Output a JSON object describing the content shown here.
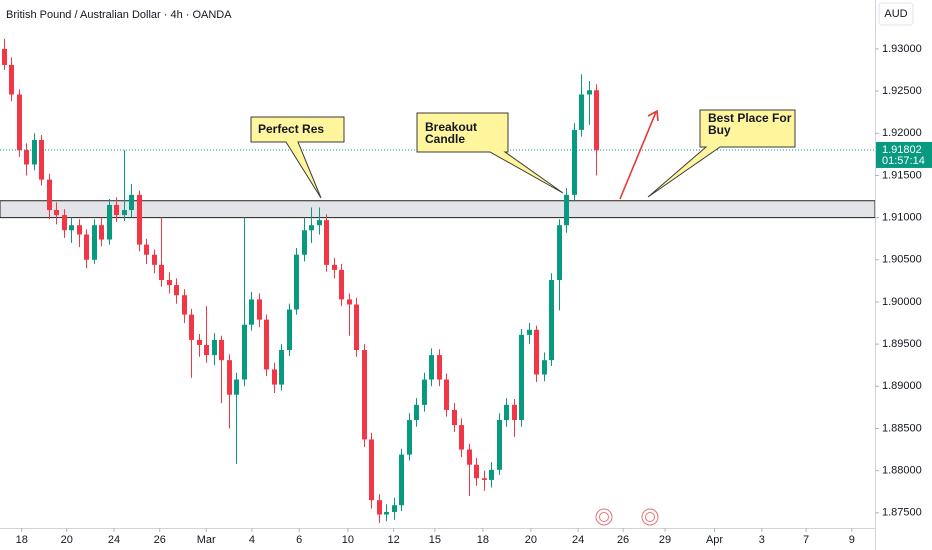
{
  "chart_data": {
    "type": "candlestick",
    "title": "British Pound / Australian Dollar · 4h · OANDA",
    "currency": "AUD",
    "last_price": 1.91802,
    "countdown": "01:57:14",
    "up_color": "#089981",
    "down_color": "#f23645",
    "grid": false,
    "zone": [
      1.91,
      1.912
    ],
    "annotations": [
      {
        "lines": [
          "Perfect Res"
        ]
      },
      {
        "lines": [
          "Breakout",
          "Candle"
        ]
      },
      {
        "lines": [
          "Best Place For",
          "Buy"
        ]
      }
    ],
    "xlim": [
      0,
      116.7
    ],
    "xticks": [
      {
        "value": 2.9,
        "label": "18"
      },
      {
        "value": 8.9,
        "label": "20"
      },
      {
        "value": 15.2,
        "label": "24"
      },
      {
        "value": 21.3,
        "label": "26"
      },
      {
        "value": 27.5,
        "label": "Mar"
      },
      {
        "value": 33.6,
        "label": "4"
      },
      {
        "value": 39.9,
        "label": "6"
      },
      {
        "value": 46.4,
        "label": "10"
      },
      {
        "value": 52.5,
        "label": "12"
      },
      {
        "value": 58.0,
        "label": "15"
      },
      {
        "value": 64.4,
        "label": "18"
      },
      {
        "value": 70.8,
        "label": "20"
      },
      {
        "value": 77.1,
        "label": "24"
      },
      {
        "value": 83.1,
        "label": "26"
      },
      {
        "value": 88.7,
        "label": "29"
      },
      {
        "value": 95.3,
        "label": "Apr"
      },
      {
        "value": 101.6,
        "label": "3"
      },
      {
        "value": 107.5,
        "label": "7"
      },
      {
        "value": 113.6,
        "label": "9"
      }
    ],
    "ylim": [
      1.8732,
      1.9358
    ],
    "yticks": [
      {
        "value": 1.875,
        "label": "1.87500"
      },
      {
        "value": 1.88,
        "label": "1.88000"
      },
      {
        "value": 1.885,
        "label": "1.88500"
      },
      {
        "value": 1.89,
        "label": "1.89000"
      },
      {
        "value": 1.895,
        "label": "1.89500"
      },
      {
        "value": 1.9,
        "label": "1.90000"
      },
      {
        "value": 1.905,
        "label": "1.90500"
      },
      {
        "value": 1.91,
        "label": "1.91000"
      },
      {
        "value": 1.915,
        "label": "1.91500"
      },
      {
        "value": 1.92,
        "label": "1.92000"
      },
      {
        "value": 1.925,
        "label": "1.92500"
      },
      {
        "value": 1.93,
        "label": "1.93000"
      }
    ],
    "open": [
      1.93,
      1.9281,
      1.9246,
      1.918,
      1.9163,
      1.9192,
      1.9145,
      1.9109,
      1.9103,
      1.9085,
      1.9091,
      1.908,
      1.905,
      1.9091,
      1.9074,
      1.9115,
      1.9103,
      1.9109,
      1.9127,
      1.9068,
      1.9056,
      1.9044,
      1.9026,
      1.902,
      1.9008,
      1.8985,
      1.8955,
      1.8949,
      1.8937,
      1.8955,
      1.8931,
      1.889,
      1.8908,
      1.8973,
      1.9003,
      1.8979,
      1.892,
      1.8902,
      1.8943,
      1.8991,
      1.9056,
      1.9085,
      1.9091,
      1.9097,
      1.9044,
      1.9038,
      1.9003,
      1.8997,
      1.8943,
      1.8837,
      1.8765,
      1.8748,
      1.8751,
      1.8759,
      1.8819,
      1.886,
      1.8878,
      1.8908,
      1.8937,
      1.8908,
      1.8872,
      1.8854,
      1.8825,
      1.8807,
      1.8791,
      1.8789,
      1.8801,
      1.886,
      1.8878,
      1.886,
      1.8961,
      1.8967,
      1.8914,
      1.8931,
      1.9026,
      1.9091,
      1.9127,
      1.9204,
      1.9246,
      1.9251
    ],
    "high": [
      1.9312,
      1.929,
      1.9252,
      1.9188,
      1.92,
      1.9198,
      1.9152,
      1.9118,
      1.911,
      1.91,
      1.9098,
      1.9086,
      1.9098,
      1.91,
      1.9122,
      1.9124,
      1.918,
      1.914,
      1.9132,
      1.9075,
      1.9062,
      1.91,
      1.9035,
      1.9028,
      1.9015,
      1.8992,
      1.8962,
      1.8995,
      1.8963,
      1.896,
      1.8938,
      1.8916,
      1.91,
      1.9012,
      1.901,
      1.8985,
      1.8928,
      1.895,
      1.8998,
      1.9064,
      1.91,
      1.9112,
      1.9112,
      1.9104,
      1.9052,
      1.9045,
      1.901,
      1.9005,
      1.895,
      1.8845,
      1.8772,
      1.876,
      1.8768,
      1.8826,
      1.8868,
      1.8886,
      1.8916,
      1.8945,
      1.8944,
      1.8915,
      1.888,
      1.8862,
      1.8832,
      1.8815,
      1.88,
      1.881,
      1.8868,
      1.8886,
      1.8885,
      1.8968,
      1.8975,
      1.8972,
      1.894,
      1.9034,
      1.9098,
      1.9135,
      1.9212,
      1.927,
      1.9262,
      1.9258
    ],
    "low": [
      1.9275,
      1.9238,
      1.9172,
      1.915,
      1.9156,
      1.9138,
      1.9098,
      1.9092,
      1.9076,
      1.907,
      1.9065,
      1.904,
      1.9045,
      1.9066,
      1.9068,
      1.9095,
      1.9096,
      1.91,
      1.906,
      1.9045,
      1.9034,
      1.9018,
      1.901,
      1.8998,
      1.8975,
      1.891,
      1.8935,
      1.8928,
      1.8925,
      1.888,
      1.885,
      1.8808,
      1.89,
      1.8966,
      1.897,
      1.8912,
      1.8892,
      1.8895,
      1.8936,
      1.8985,
      1.9048,
      1.907,
      1.908,
      1.9036,
      1.9028,
      1.8995,
      1.896,
      1.8935,
      1.8828,
      1.8755,
      1.8738,
      1.874,
      1.8742,
      1.8752,
      1.8812,
      1.8852,
      1.887,
      1.89,
      1.89,
      1.8864,
      1.8846,
      1.8816,
      1.877,
      1.8782,
      1.8776,
      1.878,
      1.8795,
      1.8852,
      1.884,
      1.8852,
      1.895,
      1.8905,
      1.8906,
      1.8924,
      1.899,
      1.9082,
      1.912,
      1.9196,
      1.921,
      1.915
    ],
    "close": [
      1.9281,
      1.9246,
      1.918,
      1.9163,
      1.9192,
      1.9145,
      1.9109,
      1.9103,
      1.9085,
      1.9091,
      1.908,
      1.905,
      1.9091,
      1.9074,
      1.9115,
      1.9103,
      1.9109,
      1.9127,
      1.9068,
      1.9056,
      1.9044,
      1.9026,
      1.902,
      1.9008,
      1.8985,
      1.8955,
      1.8949,
      1.8937,
      1.8955,
      1.8931,
      1.889,
      1.8908,
      1.8973,
      1.9003,
      1.8979,
      1.892,
      1.8902,
      1.8943,
      1.8991,
      1.9056,
      1.9085,
      1.9091,
      1.9097,
      1.9044,
      1.9038,
      1.9003,
      1.8997,
      1.8943,
      1.8837,
      1.8765,
      1.8748,
      1.8751,
      1.8759,
      1.8819,
      1.886,
      1.8878,
      1.8908,
      1.8937,
      1.8908,
      1.8872,
      1.8854,
      1.8825,
      1.8807,
      1.8791,
      1.8789,
      1.8801,
      1.886,
      1.8878,
      1.886,
      1.8961,
      1.8967,
      1.8914,
      1.8931,
      1.9026,
      1.9091,
      1.9127,
      1.9204,
      1.9246,
      1.9251,
      1.918
    ]
  }
}
